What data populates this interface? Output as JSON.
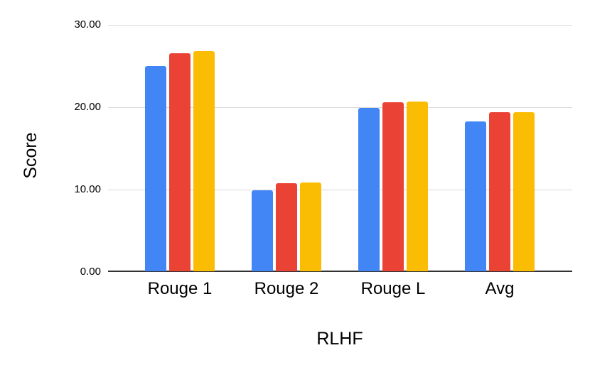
{
  "chart_data": {
    "type": "bar",
    "title": "",
    "xlabel": "RLHF",
    "ylabel": "Score",
    "ylim": [
      0,
      30
    ],
    "yticks": [
      "0.00",
      "10.00",
      "20.00",
      "30.00"
    ],
    "grid": true,
    "legend": "none",
    "categories": [
      "Rouge 1",
      "Rouge 2",
      "Rouge L",
      "Avg"
    ],
    "series": [
      {
        "name": "series-1-blue",
        "color": "#4285F4",
        "values": [
          24.9,
          9.8,
          19.8,
          18.2
        ]
      },
      {
        "name": "series-2-red",
        "color": "#EA4335",
        "values": [
          26.5,
          10.7,
          20.5,
          19.3
        ]
      },
      {
        "name": "series-3-yellow",
        "color": "#FBBC04",
        "values": [
          26.7,
          10.75,
          20.6,
          19.35
        ]
      }
    ]
  },
  "colors": {
    "background": "#ffffff",
    "gridline": "#d9d9d9",
    "axis_line": "#333333",
    "text": "#000000"
  }
}
